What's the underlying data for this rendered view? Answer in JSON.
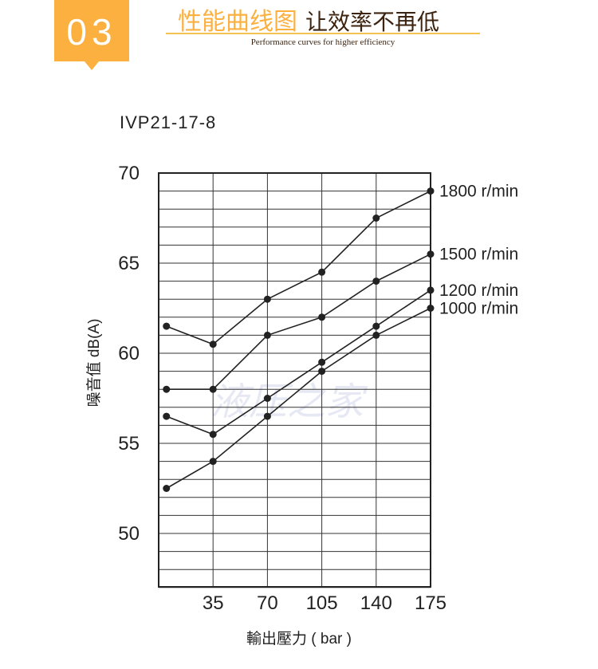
{
  "header": {
    "number": "03",
    "title_highlight": "性能曲线图",
    "title_rest": "让效率不再低",
    "subtitle": "Performance curves for higher efficiency"
  },
  "chart_data": {
    "type": "line",
    "title": "IVP21-17-8",
    "xlabel": "輸出壓力 ( bar )",
    "ylabel": "噪音值 dB(A)",
    "xlim": [
      0,
      175
    ],
    "ylim": [
      47,
      70
    ],
    "xticks": [
      35,
      70,
      105,
      140,
      175
    ],
    "yticks": [
      50,
      55,
      60,
      65,
      70
    ],
    "grid": true,
    "x": [
      5,
      35,
      70,
      105,
      140,
      175
    ],
    "series": [
      {
        "name": "1800 r/min",
        "values": [
          61.5,
          60.5,
          63,
          64.5,
          67.5,
          69
        ]
      },
      {
        "name": "1500 r/min",
        "values": [
          58,
          58,
          61,
          62,
          64,
          65.5
        ]
      },
      {
        "name": "1200 r/min",
        "values": [
          56.5,
          55.5,
          57.5,
          59.5,
          61.5,
          63.5
        ]
      },
      {
        "name": "1000 r/min",
        "values": [
          52.5,
          54,
          56.5,
          59,
          61,
          62.5
        ]
      }
    ],
    "watermark": "液压之家"
  }
}
